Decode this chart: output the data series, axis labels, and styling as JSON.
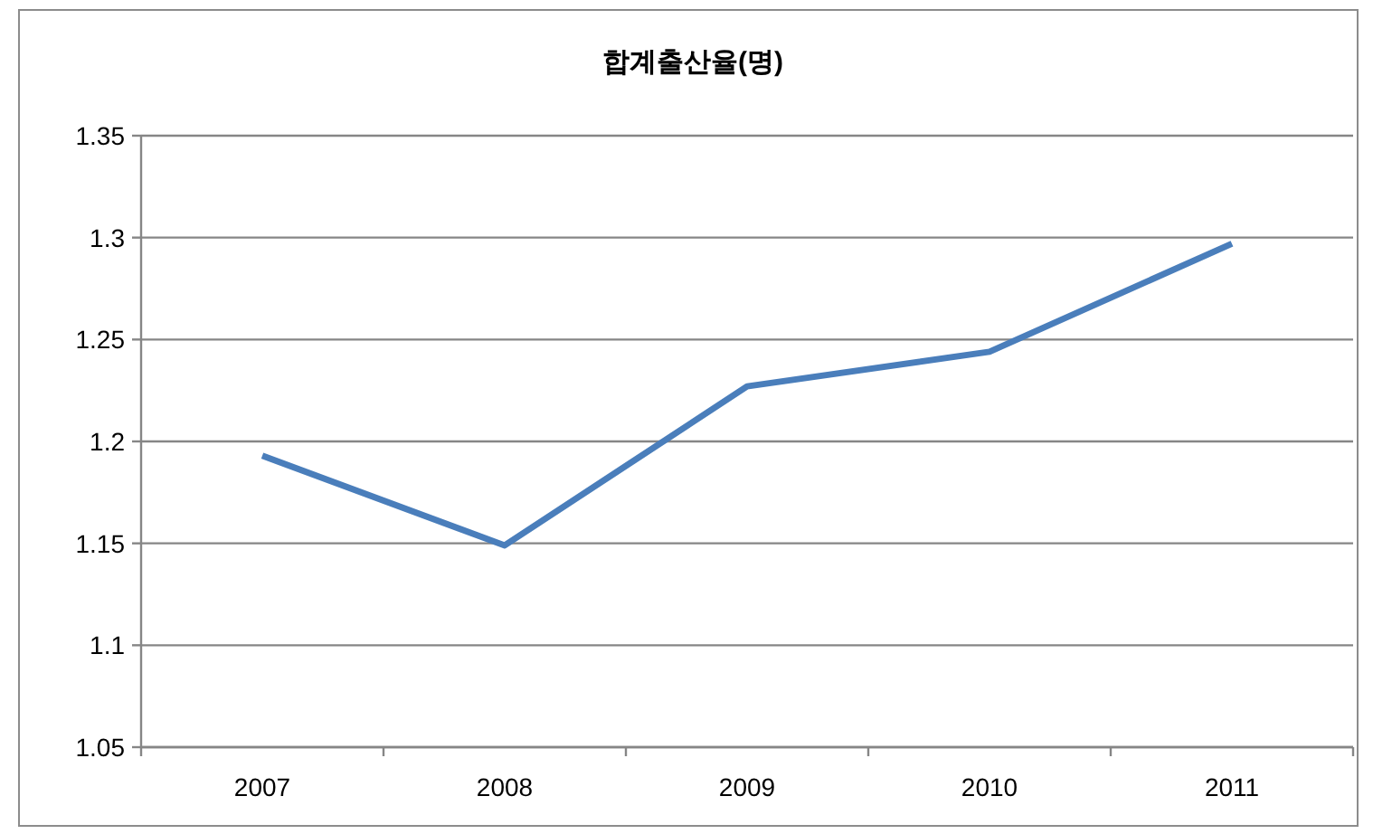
{
  "chart_data": {
    "type": "line",
    "title": "합계출산율(명)",
    "categories": [
      "2007",
      "2008",
      "2009",
      "2010",
      "2011"
    ],
    "series": [
      {
        "color": "#4a7ebb",
        "values": [
          1.193,
          1.149,
          1.227,
          1.244,
          1.297
        ]
      }
    ],
    "ylim": [
      1.05,
      1.35
    ],
    "yticks": [
      1.05,
      1.1,
      1.15,
      1.2,
      1.25,
      1.3,
      1.35
    ],
    "grid": "y",
    "marker": "none",
    "line_style": "solid"
  }
}
